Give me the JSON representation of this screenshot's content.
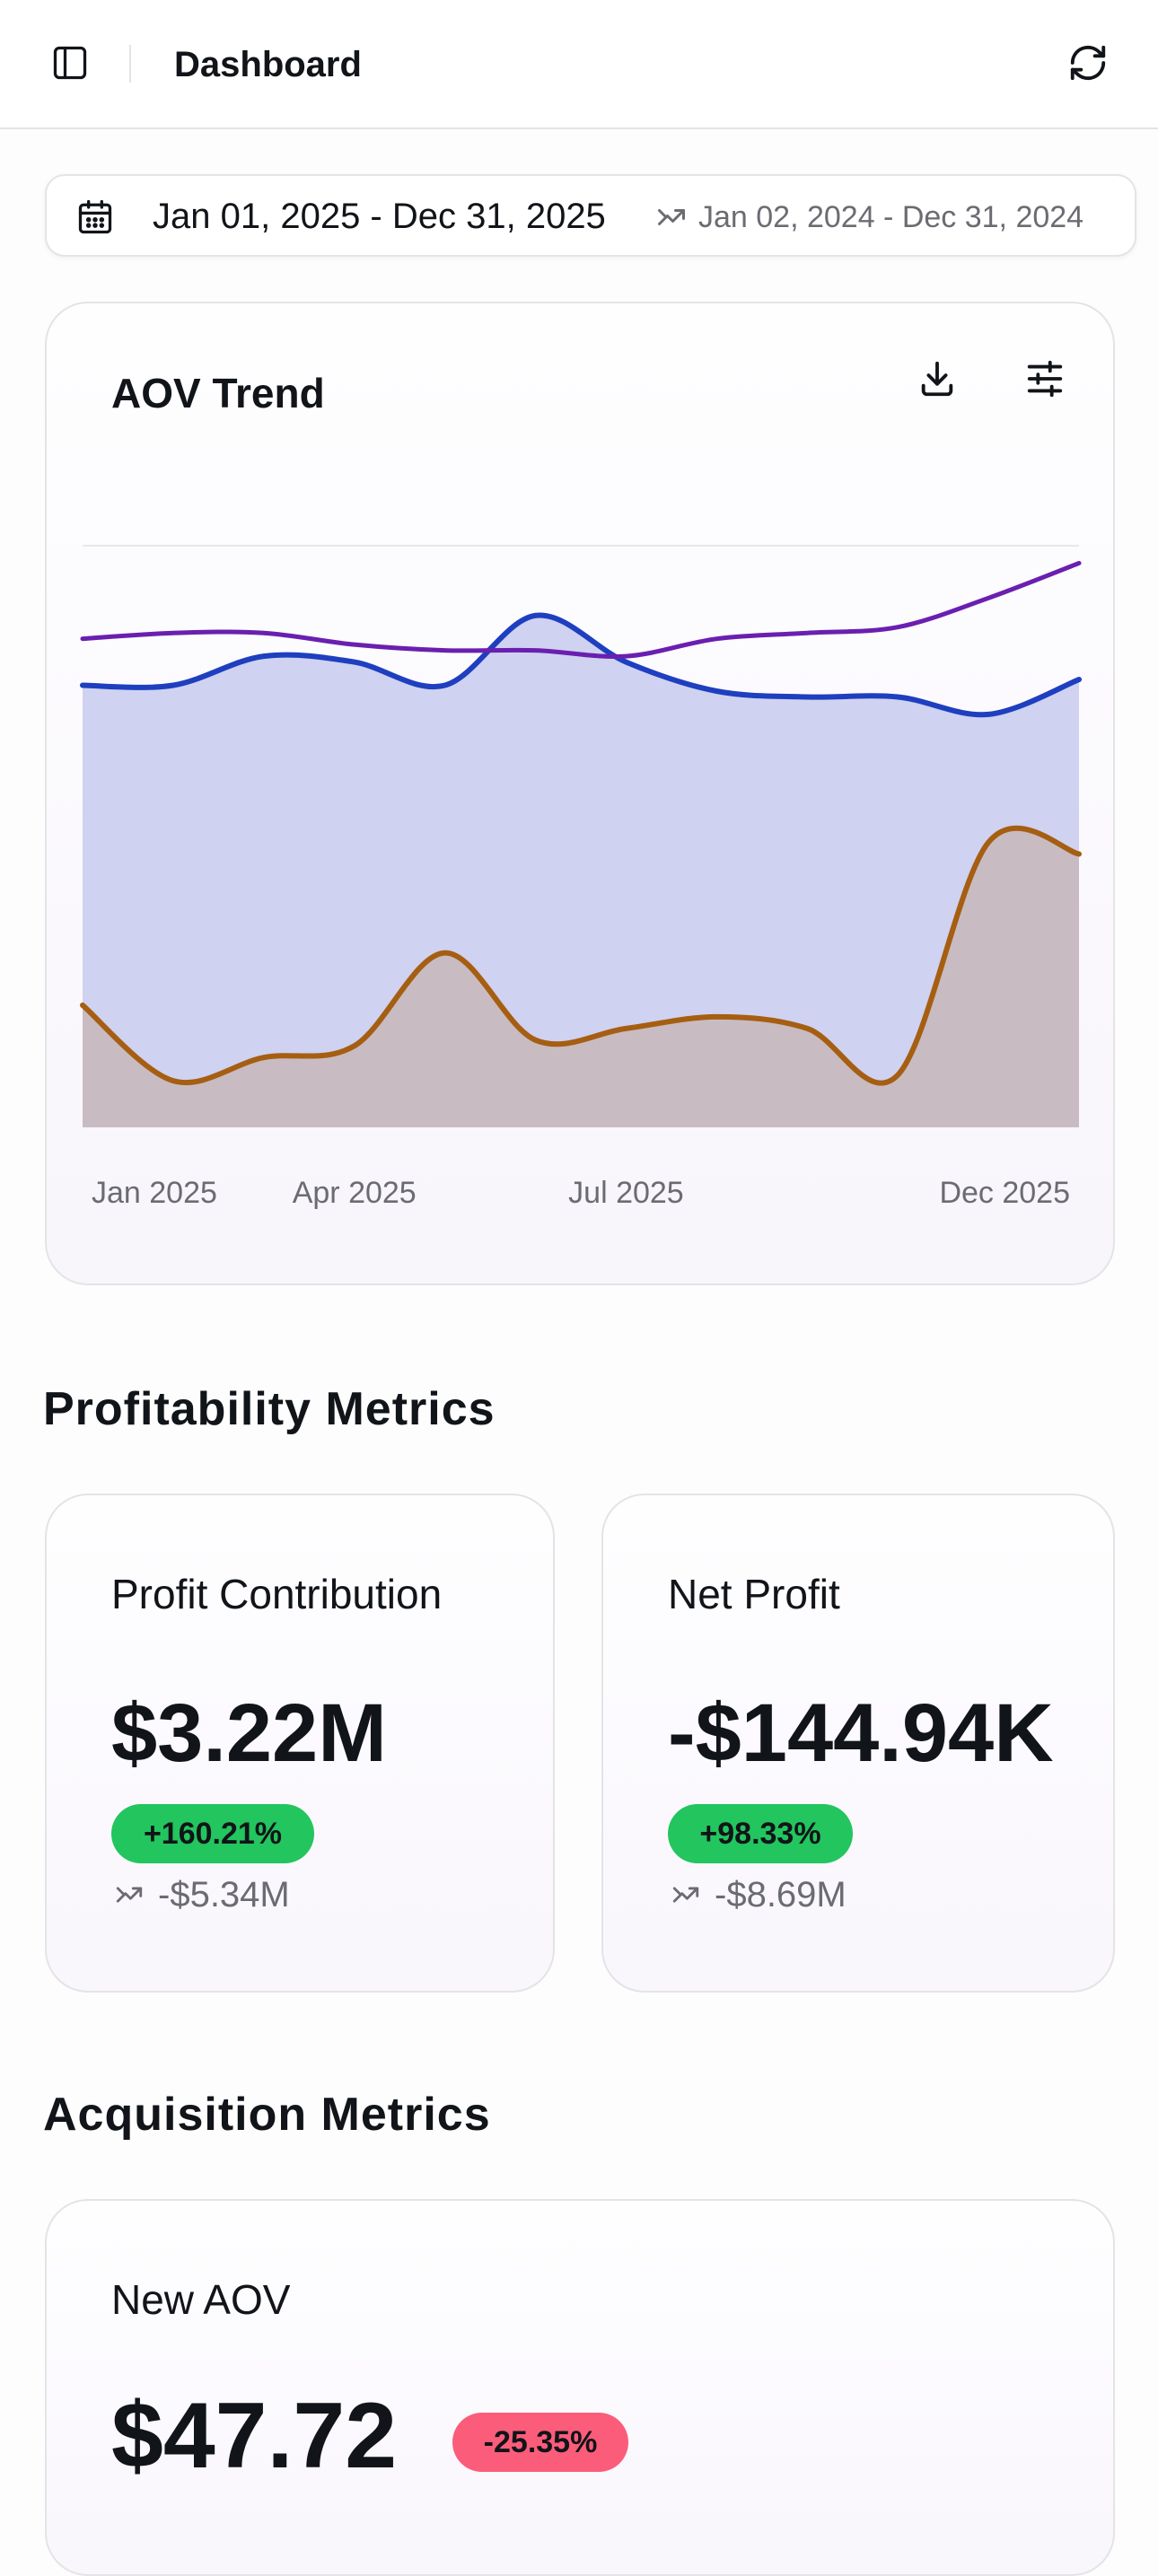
{
  "header": {
    "title": "Dashboard",
    "sidebar_icon": "sidebar-toggle-icon",
    "refresh_icon": "refresh-icon"
  },
  "date_range": {
    "current": "Jan 01, 2025 - Dec 31, 2025",
    "comparison": "Jan 02, 2024 - Dec 31, 2024",
    "calendar_icon": "calendar-icon",
    "compare_icon": "compare-arrows-icon"
  },
  "aov_chart": {
    "title": "AOV Trend",
    "download_icon": "download-icon",
    "filter_icon": "sliders-icon"
  },
  "chart_data": {
    "type": "area",
    "title": "AOV Trend",
    "xlabel": "",
    "ylabel": "",
    "x_ticks": [
      "Jan 2025",
      "Apr 2025",
      "Jul 2025",
      "Dec 2025"
    ],
    "x": [
      "Jan 2025",
      "Feb 2025",
      "Mar 2025",
      "Apr 2025",
      "May 2025",
      "Jun 2025",
      "Jul 2025",
      "Aug 2025",
      "Sep 2025",
      "Oct 2025",
      "Nov 2025",
      "Dec 2025"
    ],
    "ylim": [
      0,
      100
    ],
    "grid": true,
    "legend": "none",
    "series": [
      {
        "color": "#1e3fbf",
        "fill": "#cfd2f0",
        "style": "area",
        "values": [
          76,
          76,
          81,
          80,
          76,
          88,
          80,
          75,
          74,
          74,
          71,
          77
        ]
      },
      {
        "color": "#a65e12",
        "fill": "#c8bcc2",
        "style": "area",
        "values": [
          21,
          8,
          12,
          14,
          30,
          15,
          17,
          19,
          17,
          9,
          49,
          47
        ]
      },
      {
        "color": "#6a1fb0",
        "style": "line",
        "values": [
          84,
          85,
          85,
          83,
          82,
          82,
          81,
          84,
          85,
          86,
          91,
          97
        ]
      }
    ]
  },
  "profitability": {
    "title": "Profitability Metrics",
    "cards": [
      {
        "label": "Profit Contribution",
        "value": "$3.22M",
        "change": "+160.21%",
        "change_color": "#22c55e",
        "previous": "-$5.34M"
      },
      {
        "label": "Net Profit",
        "value": "-$144.94K",
        "change": "+98.33%",
        "change_color": "#22c55e",
        "previous": "-$8.69M"
      }
    ]
  },
  "acquisition": {
    "title": "Acquisition Metrics",
    "cards": [
      {
        "label": "New AOV",
        "value": "$47.72",
        "change": "-25.35%",
        "change_color": "#fb5c7a"
      }
    ]
  }
}
